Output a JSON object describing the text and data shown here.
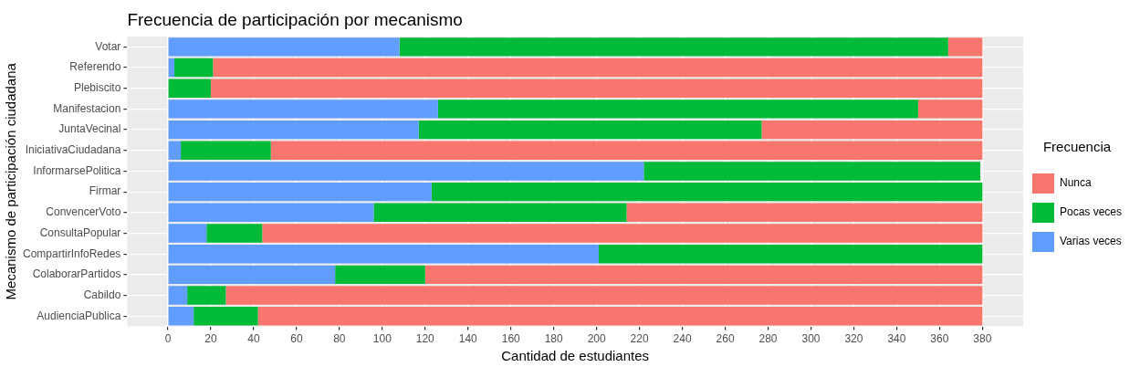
{
  "chart_data": {
    "type": "bar",
    "orientation": "horizontal",
    "stacked": true,
    "title": "Frecuencia de participación por mecanismo",
    "xlabel": "Cantidad de estudiantes",
    "ylabel": "Mecanismo de participación ciudadana",
    "legend_title": "Frecuencia",
    "categories": [
      "Votar",
      "Referendo",
      "Plebiscito",
      "Manifestacion",
      "JuntaVecinal",
      "IniciativaCiudadana",
      "InformarsePolitica",
      "Firmar",
      "ConvencerVoto",
      "ConsultaPopular",
      "CompartirInfoRedes",
      "ColaborarPartidos",
      "Cabildo",
      "AudienciaPublica"
    ],
    "series": [
      {
        "name": "Varias veces",
        "color": "#619cff",
        "values": [
          108,
          3,
          0,
          126,
          117,
          6,
          222,
          123,
          96,
          18,
          201,
          78,
          9,
          12
        ]
      },
      {
        "name": "Pocas veces",
        "color": "#00ba38",
        "values": [
          256,
          18,
          20,
          224,
          160,
          42,
          157,
          257,
          118,
          26,
          179,
          42,
          18,
          30
        ]
      },
      {
        "name": "Nunca",
        "color": "#f8766d",
        "values": [
          16,
          359,
          360,
          30,
          103,
          332,
          0,
          0,
          166,
          336,
          0,
          260,
          353,
          338
        ]
      }
    ],
    "xlim": [
      -19,
      399
    ],
    "xticks": [
      0,
      20,
      40,
      60,
      80,
      100,
      120,
      140,
      160,
      180,
      200,
      220,
      240,
      260,
      280,
      300,
      320,
      340,
      360,
      380
    ],
    "grid": true,
    "legend": "right"
  }
}
